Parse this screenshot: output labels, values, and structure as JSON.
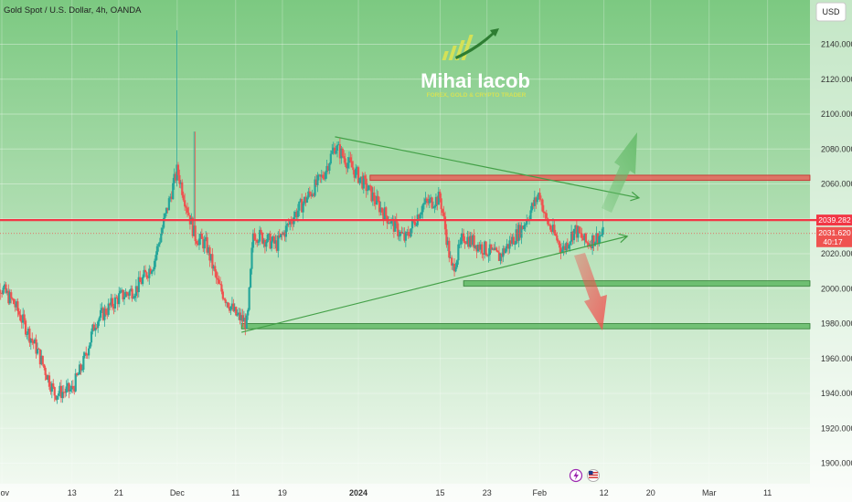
{
  "header": {
    "symbol_title": "Gold Spot / U.S. Dollar, 4h, OANDA"
  },
  "currency_button": {
    "label": "USD"
  },
  "watermark": {
    "name": "Mihai Iacob",
    "tagline": "FOREX, GOLD & CRYPTO TRADER"
  },
  "price_tags": {
    "resistance_line": "2039.282",
    "current_price": "2031.620",
    "countdown": "40:17"
  },
  "icons": {
    "event_1": "lightning-icon",
    "event_2": "us-flag-icon"
  },
  "colors": {
    "bull": "#26a69a",
    "bear": "#ef5350",
    "resistance": "#f23645",
    "support_zone": "#4caf50",
    "up_arrow": "#66bb6a",
    "down_arrow": "#ef5350"
  },
  "chart_data": {
    "type": "candlestick",
    "title": "Gold Spot / U.S. Dollar, 4h, OANDA",
    "currency": "USD",
    "ylim": [
      1890,
      2160
    ],
    "y_ticks": [
      "2140.000",
      "2120.000",
      "2100.000",
      "2080.000",
      "2060.000",
      "2040.000",
      "2020.000",
      "2000.000",
      "1980.000",
      "1960.000",
      "1940.000",
      "1920.000",
      "1900.000"
    ],
    "y_tick_values": [
      2140,
      2120,
      2100,
      2080,
      2060,
      2040,
      2020,
      2000,
      1980,
      1960,
      1940,
      1920,
      1900
    ],
    "x_range": [
      "2023-11-01",
      "2024-03-17"
    ],
    "x_ticks": [
      {
        "label": "Nov",
        "date": "2023-11-01"
      },
      {
        "label": "13",
        "date": "2023-11-13"
      },
      {
        "label": "21",
        "date": "2023-11-21"
      },
      {
        "label": "Dec",
        "date": "2023-12-01"
      },
      {
        "label": "11",
        "date": "2023-12-11"
      },
      {
        "label": "19",
        "date": "2023-12-19"
      },
      {
        "label": "2024",
        "date": "2024-01-01"
      },
      {
        "label": "15",
        "date": "2024-01-15"
      },
      {
        "label": "23",
        "date": "2024-01-23"
      },
      {
        "label": "Feb",
        "date": "2024-02-01"
      },
      {
        "label": "12",
        "date": "2024-02-12"
      },
      {
        "label": "20",
        "date": "2024-02-20"
      },
      {
        "label": "Mar",
        "date": "2024-03-01"
      },
      {
        "label": "11",
        "date": "2024-03-11"
      }
    ],
    "price_path": [
      {
        "date": "2023-10-30",
        "close": 2008
      },
      {
        "date": "2023-11-03",
        "close": 1992
      },
      {
        "date": "2023-11-07",
        "close": 1965
      },
      {
        "date": "2023-11-10",
        "close": 1940
      },
      {
        "date": "2023-11-13",
        "close": 1942
      },
      {
        "date": "2023-11-15",
        "close": 1958
      },
      {
        "date": "2023-11-17",
        "close": 1981
      },
      {
        "date": "2023-11-21",
        "close": 1995
      },
      {
        "date": "2023-11-24",
        "close": 2000
      },
      {
        "date": "2023-11-27",
        "close": 2015
      },
      {
        "date": "2023-11-29",
        "close": 2042
      },
      {
        "date": "2023-12-01",
        "close": 2068
      },
      {
        "date": "2023-12-04",
        "close": 2030
      },
      {
        "date": "2023-12-06",
        "close": 2025
      },
      {
        "date": "2023-12-08",
        "close": 2002
      },
      {
        "date": "2023-12-11",
        "close": 1985
      },
      {
        "date": "2023-12-13",
        "close": 1980
      },
      {
        "date": "2023-12-14",
        "close": 2032
      },
      {
        "date": "2023-12-18",
        "close": 2025
      },
      {
        "date": "2023-12-21",
        "close": 2042
      },
      {
        "date": "2023-12-26",
        "close": 2065
      },
      {
        "date": "2023-12-28",
        "close": 2082
      },
      {
        "date": "2024-01-02",
        "close": 2060
      },
      {
        "date": "2024-01-05",
        "close": 2045
      },
      {
        "date": "2024-01-09",
        "close": 2028
      },
      {
        "date": "2024-01-12",
        "close": 2048
      },
      {
        "date": "2024-01-15",
        "close": 2052
      },
      {
        "date": "2024-01-17",
        "close": 2010
      },
      {
        "date": "2024-01-19",
        "close": 2030
      },
      {
        "date": "2024-01-23",
        "close": 2022
      },
      {
        "date": "2024-01-25",
        "close": 2018
      },
      {
        "date": "2024-01-29",
        "close": 2035
      },
      {
        "date": "2024-02-01",
        "close": 2055
      },
      {
        "date": "2024-02-02",
        "close": 2040
      },
      {
        "date": "2024-02-05",
        "close": 2022
      },
      {
        "date": "2024-02-07",
        "close": 2034
      },
      {
        "date": "2024-02-09",
        "close": 2026
      },
      {
        "date": "2024-02-12",
        "close": 2031.62
      }
    ],
    "spikes": [
      {
        "date": "2023-12-01",
        "high": 2148
      },
      {
        "date": "2023-12-04",
        "high": 2090
      }
    ],
    "annotations": {
      "resistance_price": 2039.282,
      "last_price": 2031.62,
      "upper_trendline": [
        {
          "date": "2023-12-28",
          "price": 2087
        },
        {
          "date": "2024-02-18",
          "price": 2052
        }
      ],
      "lower_trendline": [
        {
          "date": "2023-12-12",
          "price": 1975
        },
        {
          "date": "2024-02-16",
          "price": 2030
        }
      ],
      "supply_zone": {
        "from": "2024-01-03",
        "to": "2024-03-21",
        "low": 2062,
        "high": 2065
      },
      "support_zone_1": {
        "from": "2024-01-19",
        "to": "2024-03-21",
        "low": 2001.5,
        "high": 2004.5
      },
      "support_zone_2": {
        "from": "2023-12-12",
        "to": "2024-03-21",
        "low": 1977,
        "high": 1980
      }
    }
  }
}
